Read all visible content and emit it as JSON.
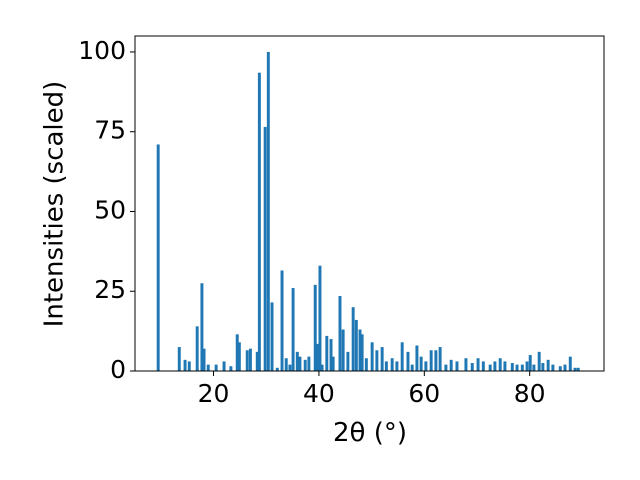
{
  "chart_data": {
    "type": "bar",
    "x": [
      9.5,
      13.5,
      14.6,
      15.4,
      16.9,
      17.8,
      18.2,
      19.0,
      20.5,
      22.0,
      23.3,
      24.5,
      24.9,
      26.4,
      27.0,
      28.3,
      28.7,
      29.8,
      30.4,
      31.1,
      32.1,
      33.0,
      33.8,
      34.5,
      35.1,
      35.9,
      36.4,
      37.4,
      38.1,
      39.3,
      39.7,
      40.2,
      40.6,
      41.5,
      42.3,
      42.7,
      44.0,
      44.6,
      45.5,
      46.5,
      47.1,
      47.8,
      48.2,
      49.0,
      50.1,
      51.0,
      52.0,
      52.8,
      53.9,
      54.8,
      55.8,
      56.9,
      57.7,
      58.6,
      59.4,
      60.3,
      61.3,
      62.2,
      63.0,
      64.1,
      65.1,
      66.2,
      67.9,
      69.1,
      70.2,
      71.2,
      72.5,
      73.4,
      74.4,
      75.3,
      76.7,
      77.6,
      78.6,
      79.5,
      80.1,
      80.8,
      81.8,
      82.5,
      83.5,
      84.4,
      85.8,
      86.7,
      87.7,
      88.6,
      89.2
    ],
    "values": [
      71,
      7.5,
      3.5,
      3,
      14,
      27.5,
      7,
      2,
      2,
      3,
      1.5,
      11.5,
      9,
      6.5,
      7,
      6,
      93.5,
      76.5,
      100,
      21.5,
      1,
      31.5,
      4,
      2,
      26,
      6,
      4.5,
      3.5,
      4.5,
      27,
      8.5,
      33,
      2,
      11,
      10,
      4.5,
      23.5,
      13,
      6,
      20,
      16,
      13,
      11.5,
      4,
      9,
      6.5,
      7.5,
      3,
      4,
      3,
      9,
      6,
      2,
      8,
      4.5,
      3,
      6.5,
      6.5,
      7.5,
      2,
      3.5,
      3,
      4,
      2.5,
      4,
      3,
      2,
      3,
      4,
      3,
      2.5,
      2,
      2,
      3,
      5,
      2,
      6,
      2.5,
      3.5,
      2,
      1.5,
      2,
      4.5,
      1,
      1
    ],
    "color": "#1f77b4",
    "xlabel": "2θ (°)",
    "ylabel": "Intensities (scaled)",
    "xlim": [
      5.1,
      94.1
    ],
    "xticks": [
      20,
      40,
      60,
      80
    ],
    "ylim": [
      0,
      105
    ],
    "yticks": [
      0,
      25,
      50,
      75,
      100
    ]
  }
}
